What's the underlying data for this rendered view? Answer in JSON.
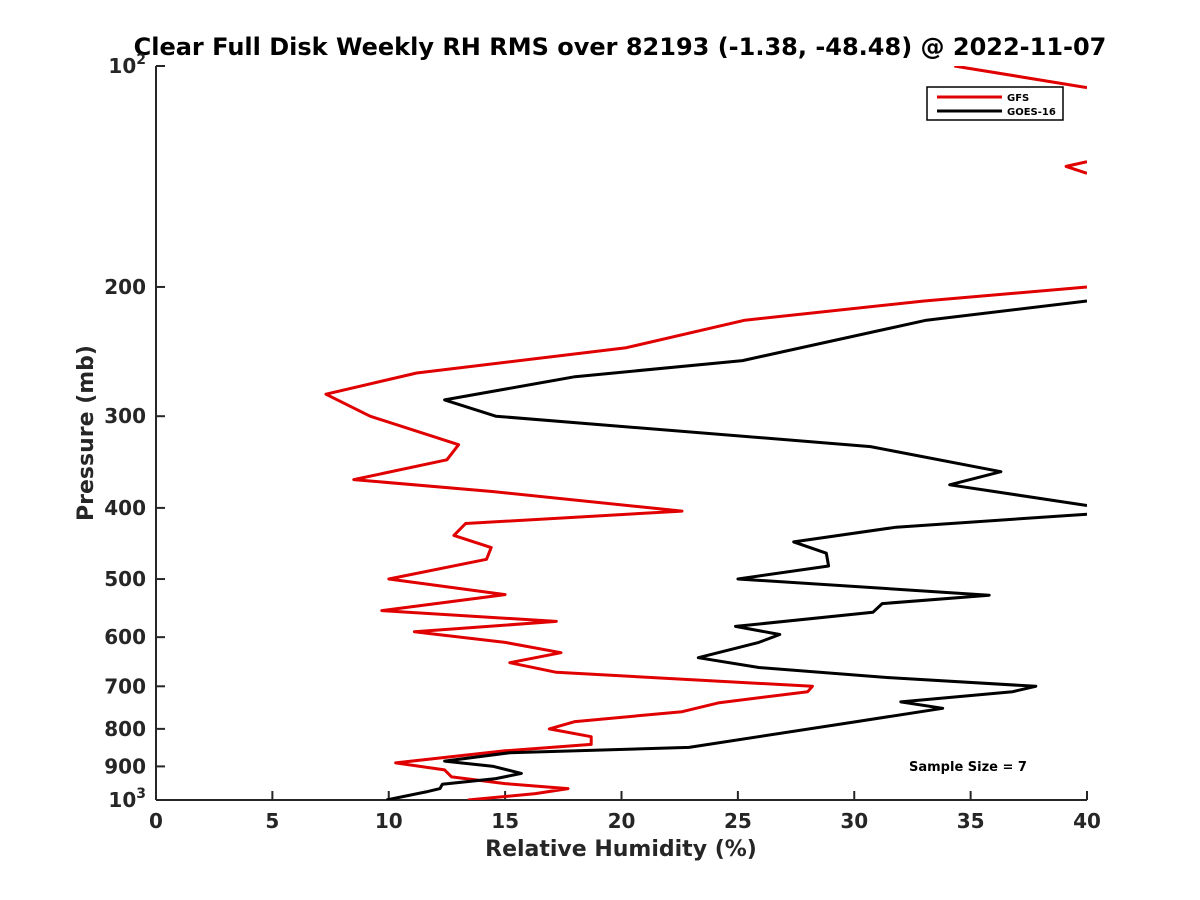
{
  "chart_data": {
    "type": "line",
    "title": "Clear Full Disk Weekly RH RMS over 82193 (-1.38, -48.48) @ 2022-11-07",
    "xlabel": "Relative Humidity (%)",
    "ylabel": "Pressure (mb)",
    "xlim": [
      0,
      40
    ],
    "ylim": [
      100,
      1000
    ],
    "yscale": "log",
    "y_reversed": true,
    "xticks": [
      0,
      5,
      10,
      15,
      20,
      25,
      30,
      35,
      40
    ],
    "yticks": [
      {
        "value": 100,
        "label": "10",
        "sup": "2"
      },
      {
        "value": 200,
        "label": "200"
      },
      {
        "value": 300,
        "label": "300"
      },
      {
        "value": 400,
        "label": "400"
      },
      {
        "value": 500,
        "label": "500"
      },
      {
        "value": 600,
        "label": "600"
      },
      {
        "value": 700,
        "label": "700"
      },
      {
        "value": 800,
        "label": "800"
      },
      {
        "value": 900,
        "label": "900"
      },
      {
        "value": 1000,
        "label": "10",
        "sup": "3"
      }
    ],
    "grid": false,
    "legend_position": "top-right",
    "annotation": "Sample Size = 7",
    "series": [
      {
        "name": "GFS",
        "color": "#e00000",
        "segments": [
          [
            [
              34.3,
              100
            ],
            [
              40.0,
              107
            ]
          ],
          [
            [
              40.0,
              135
            ],
            [
              39.1,
              137
            ],
            [
              40.0,
              140
            ]
          ],
          [
            [
              40.0,
              200
            ],
            [
              33.0,
              209
            ],
            [
              25.3,
              222
            ],
            [
              20.2,
              242
            ],
            [
              11.2,
              262
            ],
            [
              7.3,
              280
            ],
            [
              9.2,
              300
            ],
            [
              13.0,
              328
            ],
            [
              12.5,
              344
            ],
            [
              8.5,
              366
            ],
            [
              14.5,
              380
            ],
            [
              22.6,
              404
            ],
            [
              13.3,
              420
            ],
            [
              12.8,
              436
            ],
            [
              14.4,
              453
            ],
            [
              14.2,
              470
            ],
            [
              10.0,
              500
            ],
            [
              15.0,
              525
            ],
            [
              9.7,
              552
            ],
            [
              17.2,
              571
            ],
            [
              11.1,
              590
            ],
            [
              15.0,
              610
            ],
            [
              17.4,
              630
            ],
            [
              15.2,
              650
            ],
            [
              17.2,
              670
            ],
            [
              28.2,
              700
            ],
            [
              28.0,
              712
            ],
            [
              24.2,
              737
            ],
            [
              22.6,
              758
            ],
            [
              18.0,
              782
            ],
            [
              16.9,
              800
            ],
            [
              18.7,
              820
            ],
            [
              18.7,
              840
            ],
            [
              15.0,
              857
            ],
            [
              10.3,
              890
            ],
            [
              12.4,
              910
            ],
            [
              12.7,
              930
            ],
            [
              15.0,
              950
            ],
            [
              17.7,
              965
            ],
            [
              16.3,
              980
            ],
            [
              13.4,
              1000
            ]
          ]
        ]
      },
      {
        "name": "GOES-16",
        "color": "#000000",
        "segments": [
          [
            [
              40.0,
              209
            ],
            [
              33.1,
              222
            ],
            [
              25.2,
              252
            ],
            [
              18.0,
              265
            ],
            [
              12.4,
              285
            ],
            [
              14.6,
              300
            ],
            [
              30.7,
              330
            ],
            [
              36.3,
              357
            ],
            [
              34.1,
              372
            ],
            [
              40.0,
              397
            ]
          ],
          [
            [
              40.0,
              408
            ],
            [
              31.8,
              425
            ],
            [
              27.4,
              445
            ],
            [
              28.8,
              461
            ],
            [
              28.9,
              480
            ],
            [
              25.0,
              500
            ],
            [
              35.8,
              526
            ],
            [
              31.2,
              540
            ],
            [
              30.8,
              555
            ],
            [
              24.9,
              580
            ],
            [
              26.8,
              595
            ],
            [
              25.9,
              610
            ],
            [
              23.3,
              640
            ],
            [
              25.9,
              660
            ],
            [
              31.4,
              681
            ],
            [
              37.8,
              700
            ],
            [
              36.8,
              712
            ],
            [
              32.0,
              735
            ],
            [
              33.8,
              750
            ],
            [
              30.1,
              782
            ],
            [
              22.9,
              848
            ],
            [
              15.2,
              862
            ],
            [
              12.4,
              885
            ],
            [
              14.5,
              900
            ],
            [
              15.7,
              920
            ],
            [
              14.6,
              935
            ],
            [
              12.3,
              952
            ],
            [
              12.2,
              965
            ],
            [
              11.6,
              975
            ],
            [
              9.9,
              1000
            ]
          ]
        ]
      }
    ]
  }
}
